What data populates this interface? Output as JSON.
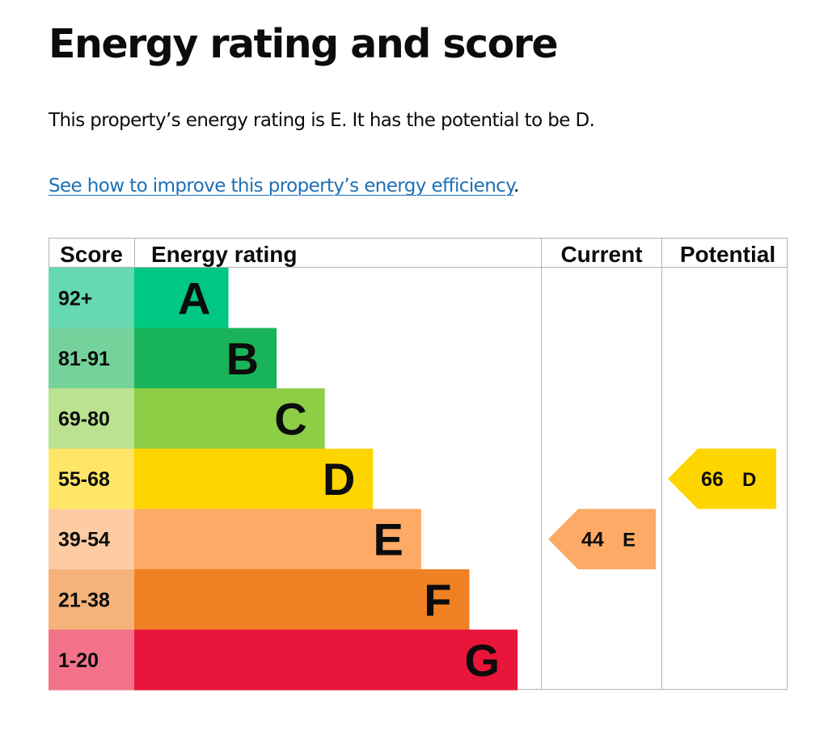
{
  "page": {
    "title": "Energy rating and score",
    "summary": "This property’s energy rating is E. It has the potential to be D.",
    "improve_link": "See how to improve this property’s energy efficiency",
    "link_suffix": "."
  },
  "chart_data": {
    "type": "bar",
    "headers": {
      "score": "Score",
      "rating": "Energy rating",
      "current": "Current",
      "potential": "Potential"
    },
    "bands": [
      {
        "letter": "A",
        "score_range": "92+",
        "color": "#00c781",
        "score_bg": "#66d9b0"
      },
      {
        "letter": "B",
        "score_range": "81-91",
        "color": "#19b459",
        "score_bg": "#75d29b"
      },
      {
        "letter": "C",
        "score_range": "69-80",
        "color": "#8dce46",
        "score_bg": "#bbe290"
      },
      {
        "letter": "D",
        "score_range": "55-68",
        "color": "#ffd500",
        "score_bg": "#ffe666"
      },
      {
        "letter": "E",
        "score_range": "39-54",
        "color": "#fcaa65",
        "score_bg": "#fdcca3"
      },
      {
        "letter": "F",
        "score_range": "21-38",
        "color": "#ef8023",
        "score_bg": "#f5b37b"
      },
      {
        "letter": "G",
        "score_range": "1-20",
        "color": "#e9153b",
        "score_bg": "#f27389"
      }
    ],
    "current": {
      "score": "44",
      "letter": "E"
    },
    "potential": {
      "score": "66",
      "letter": "D"
    }
  }
}
